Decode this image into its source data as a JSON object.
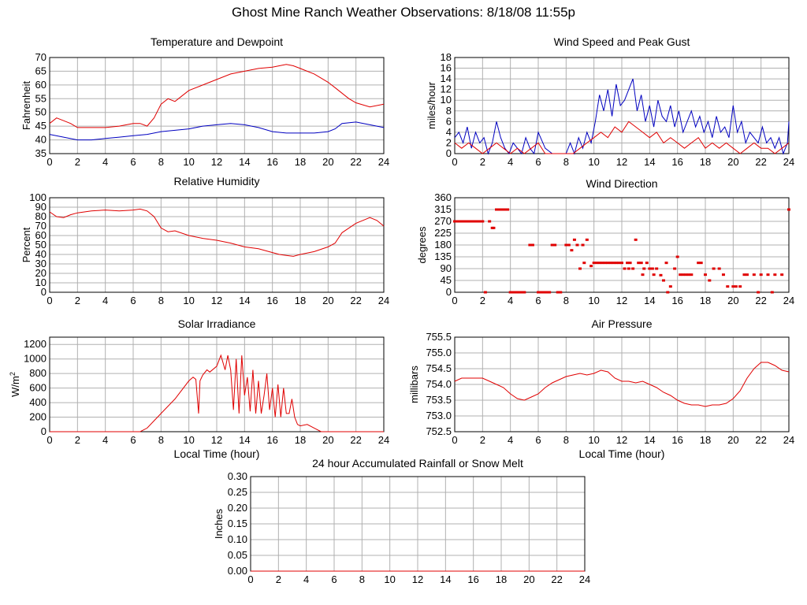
{
  "title": "Ghost Mine Ranch Weather Observations: 8/18/08 11:55p",
  "chart_data": [
    {
      "type": "line",
      "title": "Temperature and Dewpoint",
      "xlabel": "",
      "ylabel": "Fahrenheit",
      "xlim": [
        0,
        24
      ],
      "ylim": [
        35,
        70
      ],
      "xticks": [
        0,
        2,
        4,
        6,
        8,
        10,
        12,
        14,
        16,
        18,
        20,
        22,
        24
      ],
      "yticks": [
        35,
        40,
        45,
        50,
        55,
        60,
        65,
        70
      ],
      "grid": true,
      "series": [
        {
          "color": "#e00000",
          "x": [
            0,
            0.5,
            1,
            1.5,
            2,
            3,
            4,
            5,
            6,
            6.5,
            7,
            7.5,
            8,
            8.5,
            9,
            9.5,
            10,
            11,
            12,
            13,
            14,
            15,
            16,
            16.5,
            17,
            17.5,
            18,
            19,
            20,
            20.5,
            21,
            21.5,
            22,
            23,
            24
          ],
          "y": [
            46,
            48,
            47,
            46,
            44.5,
            44.5,
            44.5,
            45,
            46,
            46,
            45,
            48,
            53,
            55,
            54,
            56,
            58,
            60,
            62,
            64,
            65,
            66,
            66.5,
            67,
            67.5,
            67,
            66,
            64,
            61,
            59,
            57,
            55,
            53.5,
            52,
            53
          ]
        },
        {
          "color": "#0000c0",
          "x": [
            0,
            1,
            2,
            3,
            4,
            5,
            6,
            7,
            8,
            9,
            10,
            11,
            12,
            13,
            14,
            15,
            16,
            17,
            18,
            19,
            20,
            20.5,
            21,
            22,
            23,
            24
          ],
          "y": [
            42,
            41,
            40,
            40,
            40.5,
            41,
            41.5,
            42,
            43,
            43.5,
            44,
            45,
            45.5,
            46,
            45.5,
            44.5,
            43,
            42.5,
            42.5,
            42.5,
            43,
            44,
            46,
            46.5,
            45.5,
            44.5
          ]
        }
      ]
    },
    {
      "type": "line",
      "title": "Wind Speed and Peak Gust",
      "xlabel": "",
      "ylabel": "miles/hour",
      "xlim": [
        0,
        24
      ],
      "ylim": [
        0,
        18
      ],
      "xticks": [
        0,
        2,
        4,
        6,
        8,
        10,
        12,
        14,
        16,
        18,
        20,
        22,
        24
      ],
      "yticks": [
        0,
        2,
        4,
        6,
        8,
        10,
        12,
        14,
        16,
        18
      ],
      "grid": true,
      "series": [
        {
          "color": "#0000c0",
          "x": [
            0,
            0.3,
            0.6,
            0.9,
            1.2,
            1.5,
            1.8,
            2.1,
            2.4,
            2.7,
            3,
            3.3,
            3.6,
            3.9,
            4.2,
            4.5,
            4.8,
            5.1,
            5.4,
            5.7,
            6,
            6.5,
            7,
            7.5,
            8,
            8.3,
            8.6,
            8.9,
            9.2,
            9.5,
            9.8,
            10.1,
            10.4,
            10.7,
            11,
            11.3,
            11.6,
            11.9,
            12.2,
            12.5,
            12.8,
            13.1,
            13.4,
            13.7,
            14,
            14.3,
            14.6,
            14.9,
            15.2,
            15.5,
            15.8,
            16.1,
            16.4,
            16.7,
            17,
            17.3,
            17.6,
            17.9,
            18.2,
            18.5,
            18.8,
            19.1,
            19.4,
            19.7,
            20,
            20.3,
            20.6,
            20.9,
            21.2,
            21.5,
            21.8,
            22.1,
            22.4,
            22.7,
            23,
            23.3,
            23.6,
            23.9,
            24
          ],
          "y": [
            3,
            4,
            2,
            5,
            1,
            4,
            2,
            3,
            0,
            2,
            6,
            3,
            1,
            0,
            2,
            1,
            0,
            3,
            1,
            0,
            4,
            1,
            0,
            0,
            0,
            2,
            0,
            3,
            1,
            4,
            2,
            6,
            11,
            8,
            12,
            7,
            13,
            9,
            10,
            12,
            14,
            8,
            11,
            6,
            9,
            5,
            10,
            7,
            6,
            9,
            5,
            8,
            4,
            6,
            8,
            5,
            7,
            4,
            6,
            3,
            7,
            4,
            5,
            3,
            9,
            4,
            6,
            2,
            4,
            3,
            2,
            5,
            2,
            3,
            1,
            3,
            0,
            2,
            6
          ]
        },
        {
          "color": "#e00000",
          "x": [
            0,
            0.5,
            1,
            1.5,
            2,
            2.5,
            3,
            3.5,
            4,
            4.5,
            5,
            5.5,
            6,
            6.5,
            7,
            7.5,
            8,
            8.5,
            9,
            9.5,
            10,
            10.5,
            11,
            11.5,
            12,
            12.5,
            13,
            13.5,
            14,
            14.5,
            15,
            15.5,
            16,
            16.5,
            17,
            17.5,
            18,
            18.5,
            19,
            19.5,
            20,
            20.5,
            21,
            21.5,
            22,
            22.5,
            23,
            23.5,
            24
          ],
          "y": [
            2,
            1,
            2,
            1,
            0,
            1,
            2,
            1,
            0,
            1,
            0,
            1,
            2,
            0,
            0,
            0,
            0,
            0,
            1,
            2,
            3,
            4,
            3,
            5,
            4,
            6,
            5,
            4,
            3,
            4,
            2,
            3,
            2,
            1,
            2,
            3,
            1,
            2,
            1,
            2,
            1,
            0,
            1,
            2,
            1,
            1,
            0,
            1,
            2
          ]
        }
      ]
    },
    {
      "type": "line",
      "title": "Relative Humidity",
      "xlabel": "",
      "ylabel": "Percent",
      "xlim": [
        0,
        24
      ],
      "ylim": [
        0,
        100
      ],
      "xticks": [
        0,
        2,
        4,
        6,
        8,
        10,
        12,
        14,
        16,
        18,
        20,
        22,
        24
      ],
      "yticks": [
        0,
        10,
        20,
        30,
        40,
        50,
        60,
        70,
        80,
        90,
        100
      ],
      "grid": true,
      "series": [
        {
          "color": "#e00000",
          "x": [
            0,
            0.5,
            1,
            1.5,
            2,
            3,
            4,
            5,
            6,
            6.5,
            7,
            7.5,
            8,
            8.5,
            9,
            10,
            11,
            12,
            13,
            14,
            15,
            16,
            16.5,
            17,
            17.5,
            18,
            19,
            20,
            20.5,
            21,
            21.5,
            22,
            22.5,
            23,
            23.5,
            24
          ],
          "y": [
            85,
            80,
            79,
            82,
            84,
            86,
            87,
            86,
            87,
            88,
            86,
            80,
            68,
            64,
            65,
            60,
            57,
            55,
            52,
            48,
            46,
            42,
            40,
            39,
            38,
            40,
            43,
            48,
            52,
            63,
            68,
            73,
            76,
            79,
            76,
            70
          ]
        }
      ]
    },
    {
      "type": "scatter",
      "title": "Wind Direction",
      "xlabel": "",
      "ylabel": "degrees",
      "xlim": [
        0,
        24
      ],
      "ylim": [
        0,
        360
      ],
      "xticks": [
        0,
        2,
        4,
        6,
        8,
        10,
        12,
        14,
        16,
        18,
        20,
        22,
        24
      ],
      "yticks": [
        0,
        45,
        90,
        135,
        180,
        225,
        270,
        315,
        360
      ],
      "grid": true,
      "series": [
        {
          "color": "#e00000",
          "x": [
            0,
            0.2,
            0.4,
            0.6,
            0.8,
            1,
            1.2,
            1.4,
            1.6,
            1.8,
            2,
            2.5,
            2.7,
            2.8,
            3,
            3.2,
            3.4,
            3.6,
            3.8,
            4,
            4.2,
            4.4,
            4.6,
            4.8,
            5,
            5.4,
            5.6,
            6,
            6.2,
            6.4,
            6.6,
            7,
            7.2,
            7.4,
            7.6,
            8,
            8.2,
            8.4,
            8.6,
            8.8,
            9,
            9.2,
            9.5,
            9.8,
            10,
            10.2,
            10.4,
            10.6,
            10.8,
            11,
            11.2,
            11.4,
            11.6,
            11.8,
            12,
            12.2,
            12.4,
            12.6,
            12.8,
            13,
            13.2,
            13.4,
            13.6,
            13.8,
            14,
            14.2,
            14.5,
            14.8,
            15,
            15.2,
            15.5,
            15.8,
            16,
            16.2,
            16.4,
            16.6,
            16.8,
            17,
            17.5,
            17.7,
            18,
            18.3,
            18.6,
            19,
            19.3,
            19.6,
            20,
            20.2,
            20.5,
            20.8,
            21,
            21.5,
            22,
            22.5,
            23,
            23.5,
            24,
            2.2,
            4.5,
            6.8,
            9.3,
            12.5,
            13.5,
            14.3,
            15.3,
            21.8,
            22.8
          ],
          "y": [
            270,
            270,
            270,
            270,
            270,
            270,
            270,
            270,
            270,
            270,
            270,
            270,
            245,
            245,
            315,
            315,
            315,
            315,
            315,
            0,
            0,
            0,
            0,
            0,
            0,
            180,
            180,
            0,
            0,
            0,
            0,
            180,
            180,
            0,
            0,
            180,
            180,
            160,
            200,
            180,
            90,
            180,
            200,
            100,
            112,
            112,
            112,
            112,
            112,
            112,
            112,
            112,
            112,
            112,
            112,
            90,
            112,
            112,
            90,
            200,
            112,
            112,
            90,
            112,
            90,
            90,
            90,
            65,
            45,
            112,
            22,
            90,
            135,
            67,
            67,
            67,
            67,
            67,
            112,
            112,
            67,
            45,
            90,
            90,
            67,
            22,
            22,
            22,
            22,
            67,
            67,
            67,
            67,
            67,
            67,
            67,
            315,
            0,
            0,
            0,
            112,
            90,
            67,
            67,
            0,
            0,
            0
          ]
        }
      ]
    },
    {
      "type": "line",
      "title": "Solar Irradiance",
      "xlabel": "Local Time (hour)",
      "ylabel": "W/m",
      "ylabel_sup": "2",
      "xlim": [
        0,
        24
      ],
      "ylim": [
        0,
        1300
      ],
      "xticks": [
        0,
        2,
        4,
        6,
        8,
        10,
        12,
        14,
        16,
        18,
        20,
        22,
        24
      ],
      "yticks": [
        0,
        200,
        400,
        600,
        800,
        1000,
        1200
      ],
      "grid": true,
      "series": [
        {
          "color": "#e00000",
          "x": [
            0,
            6.5,
            7,
            8,
            9,
            10,
            10.3,
            10.5,
            10.7,
            10.8,
            11,
            11.3,
            11.5,
            12,
            12.3,
            12.6,
            12.8,
            13,
            13.2,
            13.4,
            13.6,
            13.8,
            14,
            14.2,
            14.4,
            14.6,
            14.8,
            15,
            15.2,
            15.4,
            15.6,
            15.8,
            16,
            16.2,
            16.4,
            16.6,
            16.8,
            17,
            17.2,
            17.4,
            17.6,
            17.8,
            18,
            18.5,
            19,
            19.5,
            20,
            24
          ],
          "y": [
            0,
            0,
            50,
            250,
            450,
            700,
            750,
            720,
            250,
            700,
            780,
            850,
            820,
            900,
            1050,
            850,
            1050,
            850,
            300,
            1000,
            250,
            1050,
            500,
            750,
            280,
            850,
            250,
            700,
            250,
            500,
            800,
            300,
            600,
            200,
            650,
            200,
            600,
            250,
            250,
            450,
            200,
            100,
            80,
            100,
            50,
            0,
            0,
            0
          ]
        }
      ]
    },
    {
      "type": "line",
      "title": "Air Pressure",
      "xlabel": "Local Time (hour)",
      "ylabel": "millibars",
      "xlim": [
        0,
        24
      ],
      "ylim": [
        752.5,
        755.5
      ],
      "xticks": [
        0,
        2,
        4,
        6,
        8,
        10,
        12,
        14,
        16,
        18,
        20,
        22,
        24
      ],
      "yticks": [
        752.5,
        753.0,
        753.5,
        754.0,
        754.5,
        755.0,
        755.5
      ],
      "yticklabels": [
        "752.5",
        "753.0",
        "753.5",
        "754.0",
        "754.5",
        "755.0",
        "755.5"
      ],
      "grid": true,
      "series": [
        {
          "color": "#e00000",
          "x": [
            0,
            0.5,
            1,
            1.5,
            2,
            2.5,
            3,
            3.5,
            4,
            4.5,
            5,
            5.5,
            6,
            6.5,
            7,
            7.5,
            8,
            8.5,
            9,
            9.5,
            10,
            10.5,
            11,
            11.5,
            12,
            12.5,
            13,
            13.5,
            14,
            14.5,
            15,
            15.5,
            16,
            16.5,
            17,
            17.5,
            18,
            18.5,
            19,
            19.5,
            20,
            20.5,
            21,
            21.5,
            22,
            22.5,
            23,
            23.5,
            24
          ],
          "y": [
            754.1,
            754.2,
            754.2,
            754.2,
            754.2,
            754.1,
            754.0,
            753.9,
            753.7,
            753.55,
            753.5,
            753.6,
            753.7,
            753.9,
            754.05,
            754.15,
            754.25,
            754.3,
            754.35,
            754.3,
            754.35,
            754.45,
            754.4,
            754.2,
            754.1,
            754.1,
            754.05,
            754.1,
            754.0,
            753.9,
            753.75,
            753.65,
            753.5,
            753.4,
            753.35,
            753.35,
            753.3,
            753.35,
            753.35,
            753.4,
            753.55,
            753.8,
            754.2,
            754.5,
            754.7,
            754.7,
            754.6,
            754.45,
            754.4
          ]
        }
      ]
    },
    {
      "type": "line",
      "title": "24 hour Accumulated Rainfall or Snow Melt",
      "xlabel": "",
      "ylabel": "Inches",
      "xlim": [
        0,
        24
      ],
      "ylim": [
        0,
        0.3
      ],
      "xticks": [
        0,
        2,
        4,
        6,
        8,
        10,
        12,
        14,
        16,
        18,
        20,
        22,
        24
      ],
      "yticks": [
        0,
        0.05,
        0.1,
        0.15,
        0.2,
        0.25,
        0.3
      ],
      "yticklabels": [
        "0.00",
        "0.05",
        "0.10",
        "0.15",
        "0.20",
        "0.25",
        "0.30"
      ],
      "grid": true,
      "series": [
        {
          "color": "#e00000",
          "x": [
            0,
            24
          ],
          "y": [
            0,
            0
          ]
        }
      ]
    }
  ]
}
